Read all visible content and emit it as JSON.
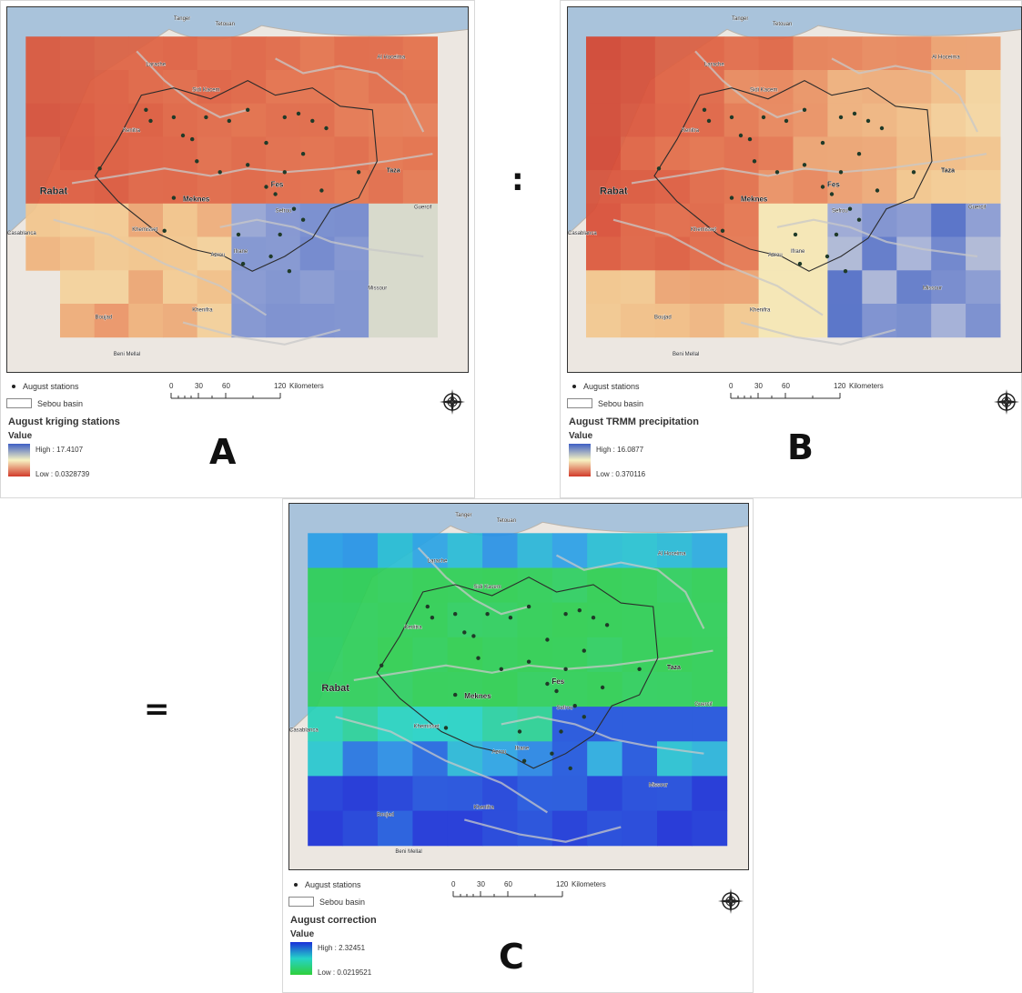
{
  "operators": {
    "divide": ":",
    "equals": "="
  },
  "panels": {
    "a": {
      "letter": "A",
      "legend_stations": "August stations",
      "legend_basin": "Sebou basin",
      "title": "August kriging stations",
      "value_label": "Value",
      "high": "High : 17.4107",
      "low": "Low : 0.0328739",
      "ramp_colors": [
        "#3e5fc4",
        "#f7f2c2",
        "#d23a2a"
      ]
    },
    "b": {
      "letter": "B",
      "legend_stations": "August stations",
      "legend_basin": "Sebou basin",
      "title": "August TRMM precipitation",
      "value_label": "Value",
      "high": "High : 16.0877",
      "low": "Low : 0.370116",
      "ramp_colors": [
        "#3e5fc4",
        "#f7f2c2",
        "#d23a2a"
      ]
    },
    "c": {
      "letter": "C",
      "legend_stations": "August stations",
      "legend_basin": "Sebou basin",
      "title": "August correction",
      "value_label": "Value",
      "high": "High : 2.32451",
      "low": "Low : 0.0219521",
      "ramp_colors": [
        "#1a2fd8",
        "#25d3c8",
        "#2fcf3a"
      ]
    }
  },
  "scalebar": {
    "ticks": [
      "0",
      "30",
      "60",
      "120"
    ],
    "unit": "Kilometers"
  },
  "map_labels": {
    "rabat": "Rabat",
    "meknes": "Meknes",
    "fes": "Fes",
    "taza": "Taza",
    "tanger": "Tanger",
    "tetouan": "Tetouan",
    "kenitra": "Kenitra",
    "larache": "Larache",
    "khemisset": "Khemisset",
    "ifrane": "Ifrane",
    "boujad": "Boujad",
    "khenifra": "Khenifra",
    "casablanca": "Casablanca",
    "beni_mellal": "Beni Mellal",
    "sidi_kacem": "Sidi Kacem",
    "sefrou": "Sefrou",
    "azrou": "Azrou",
    "missour": "Missour",
    "guercif": "Guercif",
    "al_hoceima": "Al Hoceima"
  },
  "colors": {
    "sea": "#a9c3db",
    "land": "#ece7e1",
    "basin_outline": "#2b2b2b",
    "station": "#1f3a28",
    "rivers": "#c8c8c8"
  }
}
